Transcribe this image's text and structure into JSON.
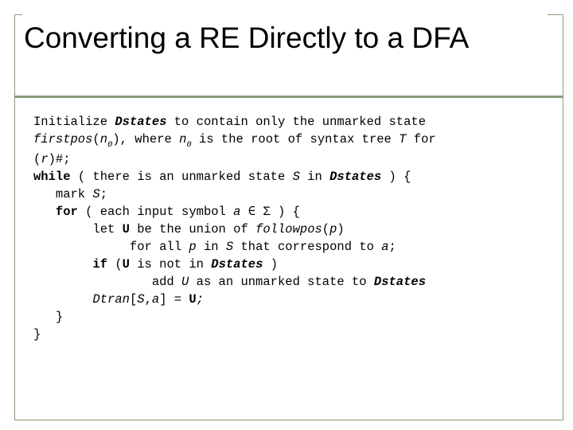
{
  "slide": {
    "title": "Converting a RE Directly to a DFA",
    "border_color": "#8a9b7a",
    "background": "#ffffff",
    "title_fontsize": 37,
    "code_fontsize": 15.5
  },
  "code": {
    "line1a": "Initialize ",
    "line1b": "Dstates",
    "line1c": " to contain only the unmarked state",
    "line2a": "firstpos",
    "line2b": "(",
    "line2c": "n",
    "line2d": "0",
    "line2e": "), where ",
    "line2f": "n",
    "line2g": "0",
    "line2h": " is the root of syntax tree ",
    "line2i": "T",
    "line2j": " for",
    "line3a": "(",
    "line3b": "r",
    "line3c": ")#;",
    "line4a": "while",
    "line4b": " ( there is an unmarked state ",
    "line4c": "S",
    "line4d": " in ",
    "line4e": "Dstates",
    "line4f": " ) {",
    "line5a": "   mark ",
    "line5b": "S",
    "line5c": ";",
    "line6a": "   ",
    "line6b": "for",
    "line6c": " ( each input symbol ",
    "line6d": "a",
    "line6e": " ∈ Σ ) {",
    "line7a": "        let ",
    "line7b": "U",
    "line7c": " be the union of ",
    "line7d": "followpos",
    "line7e": "(",
    "line7f": "p",
    "line7g": ")",
    "line8a": "             for all ",
    "line8b": "p",
    "line8c": " in ",
    "line8d": "S",
    "line8e": " that correspond to ",
    "line8f": "a",
    "line8g": ";",
    "line9a": "        ",
    "line9b": "if",
    "line9c": " (",
    "line9d": "U",
    "line9e": " is not in ",
    "line9f": "Dstates",
    "line9g": " )",
    "line10a": "                add ",
    "line10b": "U",
    "line10c": " as an unmarked state to ",
    "line10d": "Dstates",
    "line11a": "        ",
    "line11b": "Dtran",
    "line11c": "[",
    "line11d": "S",
    "line11e": ",",
    "line11f": "a",
    "line11g": "] = ",
    "line11h": "U",
    "line11i": ";",
    "line12": "   }",
    "line13": "}"
  }
}
